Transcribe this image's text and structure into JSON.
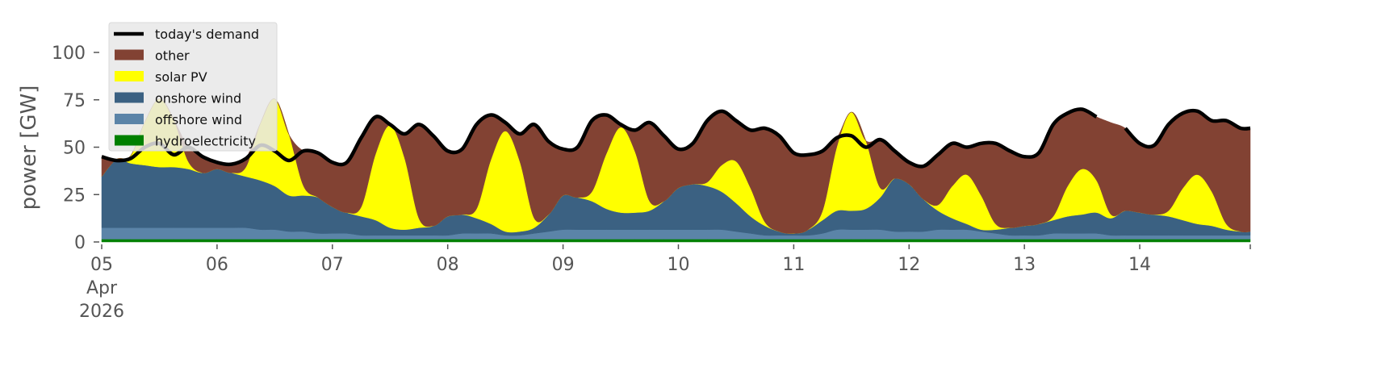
{
  "chart_data": {
    "type": "area",
    "ylabel": "power [GW]",
    "ylim": [
      0,
      120
    ],
    "xlim": [
      "2026-04-05T00:00",
      "2026-04-14T23:00"
    ],
    "yticks": [
      "0",
      "25",
      "50",
      "75",
      "100"
    ],
    "ytick_values": [
      0,
      25,
      50,
      75,
      100
    ],
    "xticks": [
      {
        "date": "2026-04-05",
        "label": [
          "05",
          "Apr",
          "2026"
        ]
      },
      {
        "date": "2026-04-06",
        "label": [
          "06"
        ]
      },
      {
        "date": "2026-04-07",
        "label": [
          "07"
        ]
      },
      {
        "date": "2026-04-08",
        "label": [
          "08"
        ]
      },
      {
        "date": "2026-04-09",
        "label": [
          "09"
        ]
      },
      {
        "date": "2026-04-10",
        "label": [
          "10"
        ]
      },
      {
        "date": "2026-04-11",
        "label": [
          "11"
        ]
      },
      {
        "date": "2026-04-12",
        "label": [
          "12"
        ]
      },
      {
        "date": "2026-04-13",
        "label": [
          "13"
        ]
      },
      {
        "date": "2026-04-14",
        "label": [
          "14"
        ]
      }
    ],
    "grid": false,
    "legend_placement": "top-left",
    "stacked": true,
    "x": [
      "2026-04-05T00:00",
      "2026-04-05T03:00",
      "2026-04-05T06:00",
      "2026-04-05T09:00",
      "2026-04-05T12:00",
      "2026-04-05T15:00",
      "2026-04-05T18:00",
      "2026-04-05T21:00",
      "2026-04-06T00:00",
      "2026-04-06T03:00",
      "2026-04-06T06:00",
      "2026-04-06T09:00",
      "2026-04-06T12:00",
      "2026-04-06T15:00",
      "2026-04-06T18:00",
      "2026-04-06T21:00",
      "2026-04-07T00:00",
      "2026-04-07T03:00",
      "2026-04-07T06:00",
      "2026-04-07T09:00",
      "2026-04-07T12:00",
      "2026-04-07T15:00",
      "2026-04-07T18:00",
      "2026-04-07T21:00",
      "2026-04-08T00:00",
      "2026-04-08T03:00",
      "2026-04-08T06:00",
      "2026-04-08T09:00",
      "2026-04-08T12:00",
      "2026-04-08T15:00",
      "2026-04-08T18:00",
      "2026-04-08T21:00",
      "2026-04-09T00:00",
      "2026-04-09T03:00",
      "2026-04-09T06:00",
      "2026-04-09T09:00",
      "2026-04-09T12:00",
      "2026-04-09T15:00",
      "2026-04-09T18:00",
      "2026-04-09T21:00",
      "2026-04-10T00:00",
      "2026-04-10T03:00",
      "2026-04-10T06:00",
      "2026-04-10T09:00",
      "2026-04-10T12:00",
      "2026-04-10T15:00",
      "2026-04-10T18:00",
      "2026-04-10T21:00",
      "2026-04-11T00:00",
      "2026-04-11T03:00",
      "2026-04-11T06:00",
      "2026-04-11T09:00",
      "2026-04-11T12:00",
      "2026-04-11T15:00",
      "2026-04-11T18:00",
      "2026-04-11T21:00",
      "2026-04-12T00:00",
      "2026-04-12T03:00",
      "2026-04-12T06:00",
      "2026-04-12T09:00",
      "2026-04-12T12:00",
      "2026-04-12T15:00",
      "2026-04-12T18:00",
      "2026-04-12T21:00",
      "2026-04-13T00:00",
      "2026-04-13T03:00",
      "2026-04-13T06:00",
      "2026-04-13T09:00",
      "2026-04-13T12:00",
      "2026-04-13T15:00",
      "2026-04-13T18:00",
      "2026-04-13T21:00",
      "2026-04-14T00:00",
      "2026-04-14T03:00",
      "2026-04-14T06:00",
      "2026-04-14T09:00",
      "2026-04-14T12:00",
      "2026-04-14T15:00",
      "2026-04-14T18:00",
      "2026-04-14T21:00"
    ],
    "series": [
      {
        "name": "hydroelectricity",
        "color": "#008000",
        "values": [
          1.5,
          1.5,
          1.5,
          1.5,
          1.5,
          1.5,
          1.5,
          1.5,
          1.5,
          1.5,
          1.5,
          1.5,
          1.5,
          1.5,
          1.5,
          1.5,
          1.5,
          1.5,
          1.5,
          1.5,
          1.5,
          1.5,
          1.5,
          1.5,
          1.5,
          1.5,
          1.5,
          1.5,
          1.5,
          1.5,
          1.5,
          1.5,
          1.5,
          1.5,
          1.5,
          1.5,
          1.5,
          1.5,
          1.5,
          1.5,
          1.5,
          1.5,
          1.5,
          1.5,
          1.5,
          1.5,
          1.5,
          1.5,
          1.5,
          1.5,
          1.5,
          1.5,
          1.5,
          1.5,
          1.5,
          1.5,
          1.5,
          1.5,
          1.5,
          1.5,
          1.5,
          1.5,
          1.5,
          1.5,
          1.5,
          1.5,
          1.5,
          1.5,
          1.5,
          1.5,
          1.5,
          1.5,
          1.5,
          1.5,
          1.5,
          1.5,
          1.5,
          1.5,
          1.5,
          1.5
        ]
      },
      {
        "name": "offshore wind",
        "color": "#5b84a8",
        "values": [
          6,
          6,
          6,
          6,
          6,
          6,
          6,
          6,
          6,
          6,
          6,
          5,
          5,
          4,
          4,
          3,
          3,
          3,
          2,
          2,
          2,
          2,
          2,
          2,
          2,
          3,
          3,
          3,
          2,
          2,
          3,
          4,
          5,
          5,
          5,
          5,
          5,
          5,
          5,
          5,
          5,
          5,
          5,
          5,
          4,
          3,
          2,
          2,
          2,
          2,
          3,
          5,
          5,
          5,
          5,
          4,
          4,
          4,
          5,
          5,
          5,
          4,
          3,
          2,
          2,
          2,
          3,
          3,
          3,
          3,
          2,
          2,
          2,
          2,
          2,
          2,
          2,
          2,
          2,
          2
        ]
      },
      {
        "name": "onshore wind",
        "color": "#3b6182",
        "values": [
          27,
          36,
          34,
          33,
          32,
          32,
          31,
          29,
          31,
          29,
          27,
          26,
          23,
          19,
          19,
          19,
          14,
          11,
          10,
          8,
          4,
          3,
          4,
          5,
          10,
          10,
          8,
          5,
          2,
          2,
          3,
          9,
          18,
          17,
          15,
          11,
          9,
          9,
          10,
          15,
          22,
          24,
          23,
          20,
          15,
          9,
          5,
          2,
          1,
          3,
          7,
          10,
          10,
          11,
          17,
          28,
          25,
          17,
          10,
          6,
          3,
          1,
          2,
          4,
          5,
          6,
          7,
          9,
          10,
          11,
          9,
          13,
          12,
          11,
          10,
          8,
          6,
          5,
          3,
          2
        ]
      },
      {
        "name": "solar PV",
        "color": "#ffff00",
        "values": [
          0,
          0,
          4,
          23,
          36,
          25,
          4,
          0,
          0,
          0,
          5,
          30,
          46,
          32,
          5,
          0,
          0,
          0,
          5,
          35,
          54,
          38,
          5,
          0,
          0,
          0,
          5,
          34,
          53,
          37,
          5,
          0,
          0,
          0,
          5,
          29,
          45,
          32,
          5,
          0,
          0,
          0,
          2,
          14,
          22,
          15,
          2,
          0,
          0,
          0,
          5,
          34,
          52,
          36,
          5,
          0,
          0,
          0,
          3,
          17,
          26,
          18,
          3,
          0,
          0,
          0,
          2,
          16,
          24,
          17,
          2,
          0,
          0,
          0,
          3,
          17,
          26,
          18,
          3,
          0
        ]
      },
      {
        "name": "other",
        "color": "#824233",
        "values": [
          10.5,
          0,
          0,
          0,
          0,
          0,
          7.5,
          8.5,
          3.5,
          4.5,
          4.5,
          0,
          0,
          0,
          18.5,
          23.5,
          23.5,
          26.5,
          36.5,
          19.5,
          0.5,
          12.5,
          49.5,
          47.5,
          34.5,
          34.5,
          44.5,
          23.5,
          4.5,
          14.5,
          49.5,
          38.5,
          24.5,
          26.5,
          37.5,
          20.5,
          1.5,
          11.5,
          41.5,
          34.5,
          20.5,
          21.5,
          32.5,
          28.5,
          21.5,
          30.5,
          49.5,
          50.5,
          42.5,
          39.5,
          31.5,
          4.5,
          0,
          0,
          25.5,
          14.5,
          11.5,
          17.5,
          26.5,
          22.5,
          14.5,
          27.5,
          42.5,
          40.5,
          36.5,
          37.5,
          48.5,
          38.5,
          31.5,
          33.5,
          48.5,
          43.5,
          36.5,
          36.5,
          45.5,
          39.5,
          33.5,
          37.5,
          54.5,
          54.5
        ]
      }
    ],
    "line": {
      "name": "today's demand",
      "color": "#000000",
      "values": [
        45,
        43,
        44,
        50,
        52,
        46,
        50,
        45,
        42,
        41,
        44,
        51,
        48,
        43,
        48,
        47,
        42,
        42,
        55,
        66,
        62,
        57,
        62,
        56,
        48,
        49,
        62,
        67,
        63,
        57,
        62,
        53,
        49,
        50,
        64,
        67,
        62,
        59,
        63,
        56,
        49,
        52,
        64,
        69,
        64,
        59,
        60,
        56,
        47,
        46,
        48,
        55,
        56,
        50,
        54,
        48,
        42,
        40,
        46,
        52,
        50,
        52,
        52,
        48,
        45,
        47,
        62,
        68,
        70,
        66,
        null,
        60,
        52,
        51,
        62,
        68,
        69,
        64,
        64,
        60
      ]
    },
    "legend": [
      "today's demand",
      "other",
      "solar PV",
      "onshore wind",
      "offshore wind",
      "hydroelectricity"
    ]
  }
}
